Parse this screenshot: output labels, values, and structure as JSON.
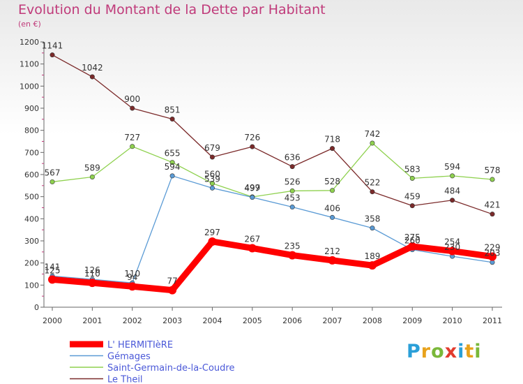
{
  "title": "Evolution du Montant de la Dette par Habitant",
  "subtitle": "(en €)",
  "logo_text": "Proxiti",
  "chart_data": {
    "type": "line",
    "title": "Evolution du Montant de la Dette par Habitant",
    "subtitle": "(en €)",
    "xlabel": "",
    "ylabel": "",
    "x": [
      "2000",
      "2001",
      "2002",
      "2003",
      "2004",
      "2005",
      "2006",
      "2007",
      "2008",
      "2009",
      "2010",
      "2011"
    ],
    "ylim": [
      0,
      1200
    ],
    "yticks": [
      "0",
      "100",
      "200",
      "300",
      "400",
      "500",
      "600",
      "700",
      "800",
      "900",
      "1000",
      "1100",
      "1200"
    ],
    "grid": false,
    "legend_position": "bottom-left",
    "series": [
      {
        "name": "L' HERMITIèRE",
        "color": "#ff0000",
        "values": [
          125,
          110,
          94,
          77,
          297,
          267,
          235,
          212,
          189,
          275,
          254,
          229
        ],
        "labels": [
          "125",
          "110",
          "94",
          "77",
          "297",
          "267",
          "235",
          "212",
          "189",
          "275",
          "254",
          "229"
        ]
      },
      {
        "name": "Gémages",
        "color": "#5b9bd5",
        "values": [
          141,
          126,
          110,
          594,
          539,
          497,
          453,
          406,
          358,
          260,
          230,
          203
        ],
        "labels": [
          "141",
          "126",
          "110",
          "594",
          "539",
          "497",
          "453",
          "406",
          "358",
          "260",
          "230",
          "203"
        ]
      },
      {
        "name": "Saint-Germain-de-la-Coudre",
        "color": "#8fd14f",
        "values": [
          567,
          589,
          727,
          655,
          560,
          499,
          526,
          528,
          742,
          583,
          594,
          578
        ],
        "labels": [
          "567",
          "589",
          "727",
          "655",
          "560",
          "499",
          "526",
          "528",
          "742",
          "583",
          "594",
          "578"
        ]
      },
      {
        "name": "Le Theil",
        "color": "#7b2a2a",
        "values": [
          1141,
          1042,
          900,
          851,
          679,
          726,
          636,
          718,
          522,
          459,
          484,
          421
        ],
        "labels": [
          "1141",
          "1042",
          "900",
          "851",
          "679",
          "726",
          "636",
          "718",
          "522",
          "459",
          "484",
          "421"
        ]
      }
    ]
  }
}
